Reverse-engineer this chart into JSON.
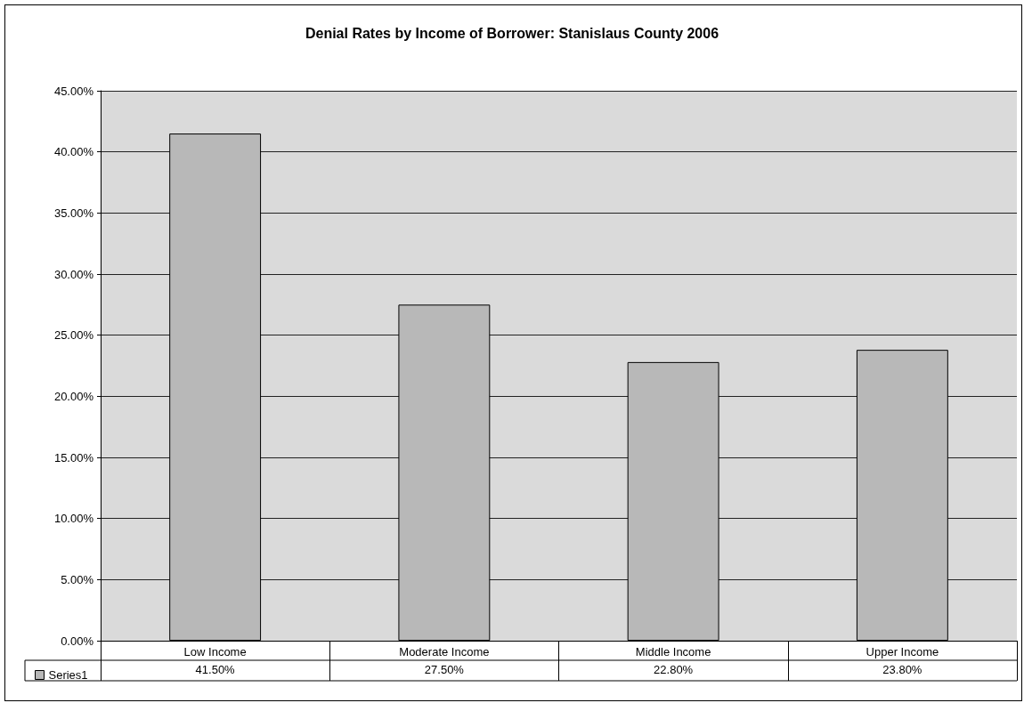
{
  "chart_data": {
    "type": "bar",
    "title": "Denial Rates by Income of Borrower: Stanislaus County 2006",
    "categories": [
      "Low Income",
      "Moderate Income",
      "Middle Income",
      "Upper Income"
    ],
    "series": [
      {
        "name": "Series1",
        "color": "#b8b8b8",
        "values": [
          41.5,
          27.5,
          22.8,
          23.8
        ],
        "value_labels": [
          "41.50%",
          "27.50%",
          "22.80%",
          "23.80%"
        ]
      }
    ],
    "ylim": [
      0,
      45
    ],
    "yticks": [
      {
        "value": 0,
        "label": "0.00%"
      },
      {
        "value": 5,
        "label": "5.00%"
      },
      {
        "value": 10,
        "label": "10.00%"
      },
      {
        "value": 15,
        "label": "15.00%"
      },
      {
        "value": 20,
        "label": "20.00%"
      },
      {
        "value": 25,
        "label": "25.00%"
      },
      {
        "value": 30,
        "label": "30.00%"
      },
      {
        "value": 35,
        "label": "35.00%"
      },
      {
        "value": 40,
        "label": "40.00%"
      },
      {
        "value": 45,
        "label": "45.00%"
      }
    ],
    "grid": "y",
    "legend": "bottom left"
  }
}
